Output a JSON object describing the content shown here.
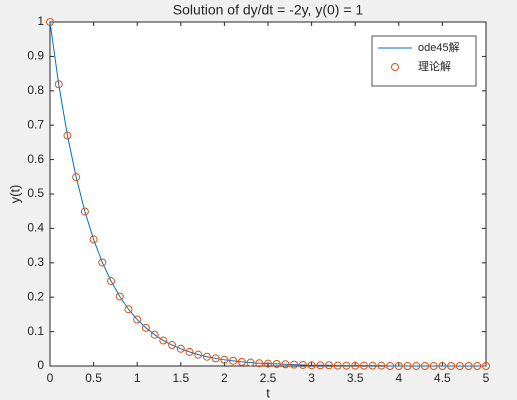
{
  "chart_data": {
    "type": "line",
    "title": "Solution of dy/dt = -2y, y(0) = 1",
    "x_label": "t",
    "y_label": "y(t)",
    "x": [
      0,
      0.1,
      0.2,
      0.3,
      0.4,
      0.5,
      0.6,
      0.7,
      0.8,
      0.9,
      1.0,
      1.1,
      1.2,
      1.3,
      1.4,
      1.5,
      1.6,
      1.7,
      1.8,
      1.9,
      2.0,
      2.1,
      2.2,
      2.3,
      2.4,
      2.5,
      2.6,
      2.7,
      2.8,
      2.9,
      3.0,
      3.1,
      3.2,
      3.3,
      3.4,
      3.5,
      3.6,
      3.7,
      3.8,
      3.9,
      4.0,
      4.1,
      4.2,
      4.3,
      4.4,
      4.5,
      4.6,
      4.7,
      4.8,
      4.9,
      5.0
    ],
    "series": [
      {
        "name": "ode45解",
        "color": "#0072bd",
        "mode": "line",
        "values": [
          1,
          0.819,
          0.67,
          0.549,
          0.449,
          0.368,
          0.301,
          0.247,
          0.202,
          0.165,
          0.135,
          0.111,
          0.091,
          0.074,
          0.061,
          0.05,
          0.041,
          0.033,
          0.027,
          0.022,
          0.018,
          0.015,
          0.012,
          0.01,
          0.008,
          0.007,
          0.006,
          0.005,
          0.004,
          0.003,
          0.002,
          0.002,
          0.002,
          0.001,
          0.001,
          0.001,
          0.001,
          0.001,
          0.001,
          0,
          0,
          0,
          0,
          0,
          0,
          0,
          0,
          0,
          0,
          0,
          0
        ]
      },
      {
        "name": "理论解",
        "color": "#d95319",
        "mode": "markers",
        "values": [
          1,
          0.819,
          0.67,
          0.549,
          0.449,
          0.368,
          0.301,
          0.247,
          0.202,
          0.165,
          0.135,
          0.111,
          0.091,
          0.074,
          0.061,
          0.05,
          0.041,
          0.033,
          0.027,
          0.022,
          0.018,
          0.015,
          0.012,
          0.01,
          0.008,
          0.007,
          0.006,
          0.005,
          0.004,
          0.003,
          0.002,
          0.002,
          0.002,
          0.001,
          0.001,
          0.001,
          0.001,
          0.001,
          0.001,
          0,
          0,
          0,
          0,
          0,
          0,
          0,
          0,
          0,
          0,
          0,
          0
        ]
      }
    ],
    "xlim": [
      0,
      5
    ],
    "xticks": [
      0,
      0.5,
      1,
      1.5,
      2,
      2.5,
      3,
      3.5,
      4,
      4.5,
      5
    ],
    "ylim": [
      0,
      1
    ],
    "yticks": [
      0,
      0.1,
      0.2,
      0.3,
      0.4,
      0.5,
      0.6,
      0.7,
      0.8,
      0.9,
      1
    ],
    "grid": false,
    "legend": "top-right"
  }
}
